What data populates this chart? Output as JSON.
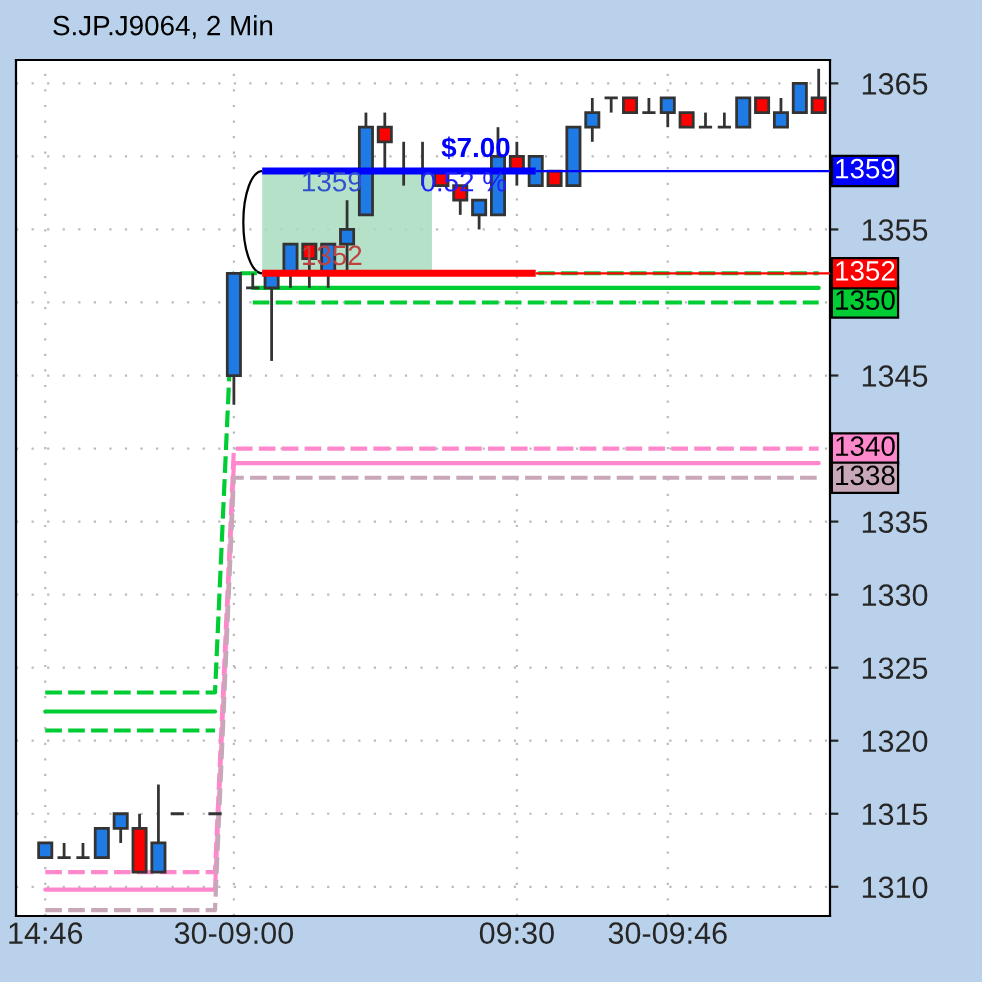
{
  "chart_data": {
    "type": "candlestick",
    "title": "S.JP.J9064, 2 Min",
    "categories": [
      "14:46",
      null,
      null,
      null,
      null,
      null,
      null,
      null,
      null,
      null,
      "30-09:00",
      null,
      null,
      null,
      null,
      null,
      null,
      null,
      null,
      null,
      null,
      null,
      null,
      null,
      null,
      "09:30",
      null,
      null,
      null,
      null,
      null,
      null,
      null,
      "30-09:46",
      null,
      null,
      null,
      null,
      null,
      null,
      null,
      null
    ],
    "ohlc": [
      [
        1312,
        1313,
        1312,
        1313
      ],
      [
        1312,
        1313,
        1312,
        1312
      ],
      [
        1312,
        1313,
        1312,
        1312
      ],
      [
        1312,
        1314,
        1312,
        1314
      ],
      [
        1314,
        1315,
        1313,
        1315
      ],
      [
        1314,
        1315,
        1311,
        1311
      ],
      [
        1311,
        1317,
        1311,
        1313
      ],
      [
        1315,
        1315,
        1315,
        1315
      ],
      null,
      [
        1315,
        1315,
        1315,
        1315
      ],
      [
        1345,
        1352,
        1343,
        1352
      ],
      [
        1351,
        1352,
        1351,
        1351
      ],
      [
        1351,
        1352,
        1346,
        1352
      ],
      [
        1352,
        1354,
        1351,
        1354
      ],
      [
        1354,
        1354,
        1351,
        1353
      ],
      [
        1352,
        1354,
        1351,
        1354
      ],
      [
        1354,
        1357,
        1352,
        1355
      ],
      [
        1356,
        1363,
        1356,
        1362
      ],
      [
        1362,
        1363,
        1359,
        1361
      ],
      [
        1359,
        1361,
        1358,
        1359
      ],
      [
        1359,
        1361,
        1358,
        1359
      ],
      [
        1359,
        1359,
        1358,
        1358
      ],
      [
        1358,
        1358,
        1356,
        1357
      ],
      [
        1356,
        1357,
        1355,
        1357
      ],
      [
        1356,
        1362,
        1356,
        1360
      ],
      [
        1360,
        1361,
        1358,
        1359
      ],
      [
        1358,
        1360,
        1358,
        1360
      ],
      [
        1359,
        1359,
        1358,
        1358
      ],
      [
        1358,
        1362,
        1358,
        1362
      ],
      [
        1362,
        1364,
        1361,
        1363
      ],
      [
        1364,
        1364,
        1363,
        1364
      ],
      [
        1364,
        1364,
        1363,
        1363
      ],
      [
        1363,
        1364,
        1363,
        1363
      ],
      [
        1363,
        1364,
        1362,
        1364
      ],
      [
        1363,
        1363,
        1362,
        1362
      ],
      [
        1362,
        1363,
        1362,
        1362
      ],
      [
        1362,
        1363,
        1362,
        1362
      ],
      [
        1362,
        1364,
        1362,
        1364
      ],
      [
        1364,
        1364,
        1363,
        1363
      ],
      [
        1362,
        1364,
        1362,
        1363
      ],
      [
        1363,
        1365,
        1363,
        1365
      ],
      [
        1364,
        1366,
        1363,
        1363
      ]
    ],
    "series": [
      {
        "type": "step",
        "color": "#00cc33",
        "line_style": "dashed",
        "values": [
          1323.3,
          1323.3,
          1323.3,
          1323.3,
          1323.3,
          1323.3,
          1323.3,
          1323.3,
          1323.3,
          1323.3,
          1352,
          1352,
          1352,
          1352,
          1352,
          1352,
          1352,
          1352,
          1352,
          1352,
          1352,
          1352,
          1352,
          1352,
          1352,
          1352,
          1352,
          1352,
          1352,
          1352,
          1352,
          1352,
          1352,
          1352,
          1352,
          1352,
          1352,
          1352,
          1352,
          1352,
          1352,
          1352
        ]
      },
      {
        "type": "step",
        "color": "#00cc33",
        "line_style": "solid",
        "values": [
          1322,
          1322,
          1322,
          1322,
          1322,
          1322,
          1322,
          1322,
          1322,
          1322,
          null,
          1351,
          1351,
          1351,
          1351,
          1351,
          1351,
          1351,
          1351,
          1351,
          1351,
          1351,
          1351,
          1351,
          1351,
          1351,
          1351,
          1351,
          1351,
          1351,
          1351,
          1351,
          1351,
          1351,
          1351,
          1351,
          1351,
          1351,
          1351,
          1351,
          1351,
          1351
        ]
      },
      {
        "type": "step",
        "color": "#00cc33",
        "line_style": "dashed",
        "values": [
          1320.7,
          1320.7,
          1320.7,
          1320.7,
          1320.7,
          1320.7,
          1320.7,
          1320.7,
          1320.7,
          1320.7,
          null,
          1350,
          1350,
          1350,
          1350,
          1350,
          1350,
          1350,
          1350,
          1350,
          1350,
          1350,
          1350,
          1350,
          1350,
          1350,
          1350,
          1350,
          1350,
          1350,
          1350,
          1350,
          1350,
          1350,
          1350,
          1350,
          1350,
          1350,
          1350,
          1350,
          1350,
          1350
        ],
        "value_labels": [
          null,
          null,
          null,
          null,
          null,
          null,
          null,
          null,
          null,
          null,
          null,
          null,
          null,
          null,
          null,
          null,
          null,
          null,
          null,
          null,
          null,
          null,
          null,
          null,
          null,
          null,
          null,
          null,
          null,
          null,
          null,
          null,
          null,
          null,
          null,
          null,
          null,
          null,
          null,
          null,
          null,
          "1350"
        ]
      },
      {
        "type": "step",
        "color": "#ff88cc",
        "line_style": "dashed",
        "values": [
          1311,
          1311,
          1311,
          1311,
          1311,
          1311,
          1311,
          1311,
          1311,
          1311,
          1340,
          1340,
          1340,
          1340,
          1340,
          1340,
          1340,
          1340,
          1340,
          1340,
          1340,
          1340,
          1340,
          1340,
          1340,
          1340,
          1340,
          1340,
          1340,
          1340,
          1340,
          1340,
          1340,
          1340,
          1340,
          1340,
          1340,
          1340,
          1340,
          1340,
          1340,
          1340
        ],
        "value_labels": [
          null,
          null,
          null,
          null,
          null,
          null,
          null,
          null,
          null,
          null,
          null,
          null,
          null,
          null,
          null,
          null,
          null,
          null,
          null,
          null,
          null,
          null,
          null,
          null,
          null,
          null,
          null,
          null,
          null,
          null,
          null,
          null,
          null,
          null,
          null,
          null,
          null,
          null,
          null,
          null,
          null,
          "1340"
        ]
      },
      {
        "type": "step",
        "color": "#ff88cc",
        "line_style": "solid",
        "values": [
          1309.8,
          1309.8,
          1309.8,
          1309.8,
          1309.8,
          1309.8,
          1309.8,
          1309.8,
          1309.8,
          1309.8,
          1339,
          1339,
          1339,
          1339,
          1339,
          1339,
          1339,
          1339,
          1339,
          1339,
          1339,
          1339,
          1339,
          1339,
          1339,
          1339,
          1339,
          1339,
          1339,
          1339,
          1339,
          1339,
          1339,
          1339,
          1339,
          1339,
          1339,
          1339,
          1339,
          1339,
          1339,
          1339
        ]
      },
      {
        "type": "step",
        "color": "#c8a8b8",
        "line_style": "dashed",
        "values": [
          1308.4,
          1308.4,
          1308.4,
          1308.4,
          1308.4,
          1308.4,
          1308.4,
          1308.4,
          1308.4,
          1308.4,
          1338,
          1338,
          1338,
          1338,
          1338,
          1338,
          1338,
          1338,
          1338,
          1338,
          1338,
          1338,
          1338,
          1338,
          1338,
          1338,
          1338,
          1338,
          1338,
          1338,
          1338,
          1338,
          1338,
          1338,
          1338,
          1338,
          1338,
          1338,
          1338,
          1338,
          1338,
          1338
        ],
        "value_labels": [
          null,
          null,
          null,
          null,
          null,
          null,
          null,
          null,
          null,
          null,
          null,
          null,
          null,
          null,
          null,
          null,
          null,
          null,
          null,
          null,
          null,
          null,
          null,
          null,
          null,
          null,
          null,
          null,
          null,
          null,
          null,
          null,
          null,
          null,
          null,
          null,
          null,
          null,
          null,
          null,
          null,
          "1338"
        ]
      }
    ],
    "ylim": [
      1308,
      1366.6
    ],
    "yticks": [
      1310,
      1315,
      1320,
      1325,
      1330,
      1335,
      {
        "value": 1340,
        "label": null
      },
      1345,
      {
        "value": 1350,
        "label": null
      },
      1355,
      {
        "value": 1360,
        "label": null
      },
      1365
    ],
    "grid": true,
    "ref_lines": [
      {
        "axis": "y",
        "value": 1359,
        "label": "1359",
        "color": "#0000ff",
        "line_style": "solid"
      },
      {
        "axis": "y",
        "value": 1352,
        "label": "1352",
        "color": "#ff0000",
        "line_style": "solid"
      }
    ],
    "bands": [
      {
        "axis": "y",
        "from": 1352,
        "to": 1359,
        "color": "#a8dcc0"
      }
    ],
    "annotations": [
      "1359",
      "1352",
      "$7.00",
      "0.52 %"
    ]
  }
}
